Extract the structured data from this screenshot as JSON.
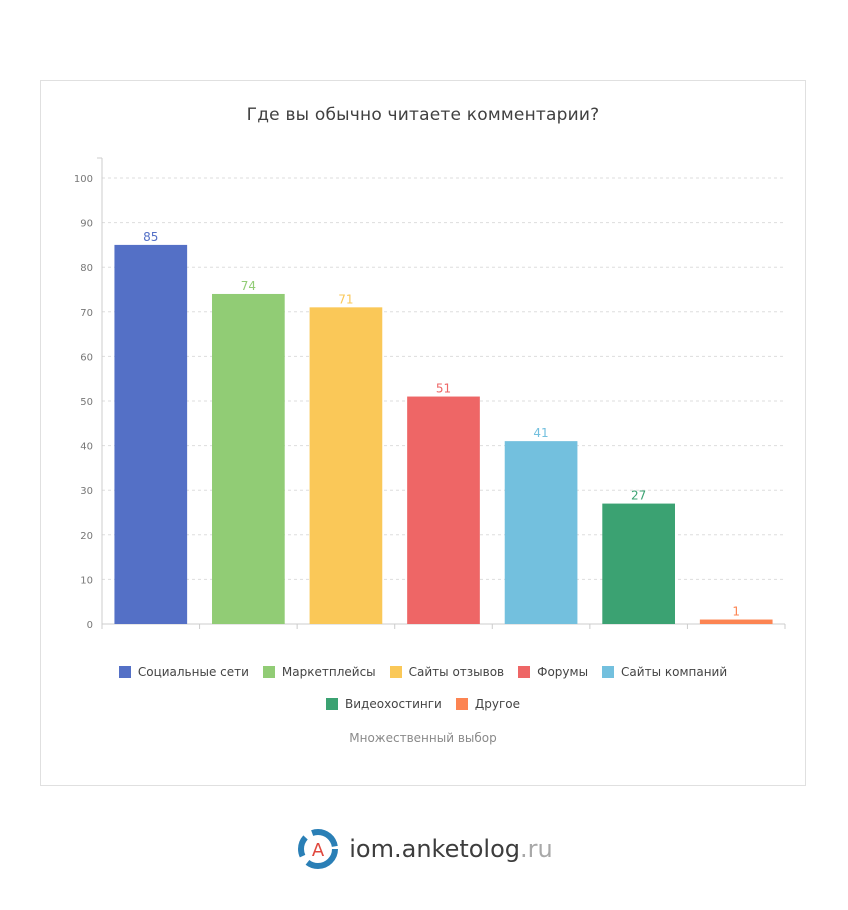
{
  "chart_data": {
    "type": "bar",
    "title": "Где вы обычно читаете комментарии?",
    "subtitle": "Множественный выбор",
    "categories": [
      "Социальные сети",
      "Маркетплейсы",
      "Сайты отзывов",
      "Форумы",
      "Сайты компаний",
      "Видеохостинги",
      "Другое"
    ],
    "values": [
      85,
      74,
      71,
      51,
      41,
      27,
      1
    ],
    "colors": [
      "#5470c6",
      "#91cc75",
      "#fac858",
      "#ee6666",
      "#73c0de",
      "#3ba272",
      "#fc8452"
    ],
    "ylim": [
      0,
      100
    ],
    "yticks": [
      0,
      10,
      20,
      30,
      40,
      50,
      60,
      70,
      80,
      90,
      100
    ],
    "grid": true,
    "legend_position": "bottom"
  },
  "brand": {
    "name": "iom.anketolog",
    "suffix": ".ru",
    "logo_letter": "A"
  }
}
